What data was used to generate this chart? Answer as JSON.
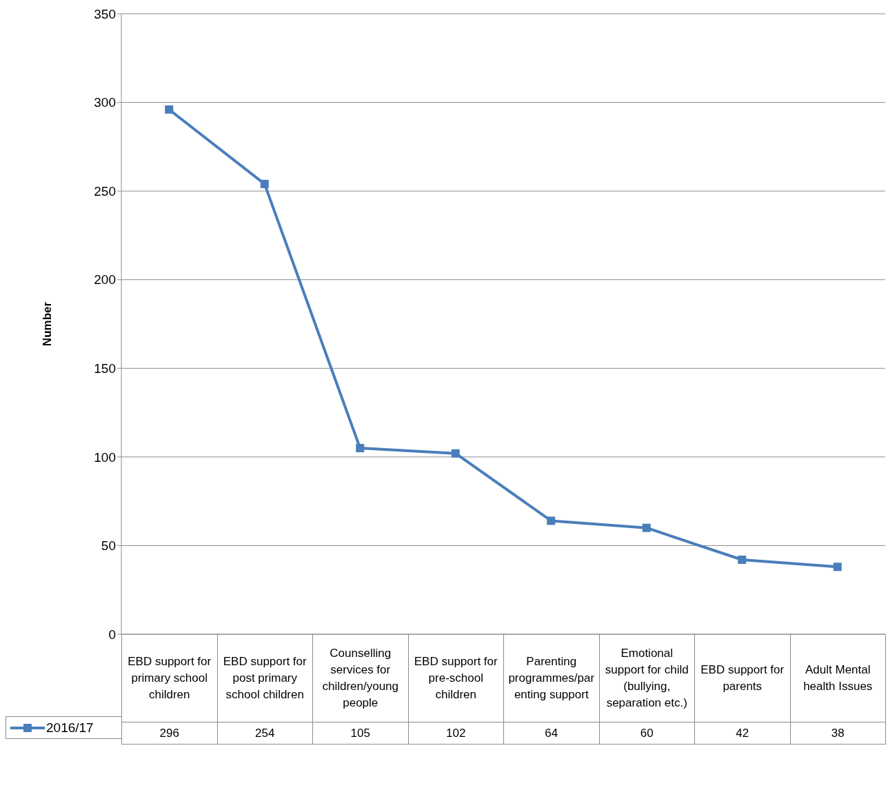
{
  "chart_data": {
    "type": "line",
    "ylabel": "Number",
    "categories": [
      "EBD support for primary school children",
      "EBD support for post primary school children",
      "Counselling services for children/young people",
      "EBD support for pre-school children",
      "Parenting programmes/parenting support",
      "Emotional support for child (bullying, separation etc.)",
      "EBD support for parents",
      "Adult Mental health Issues"
    ],
    "series": [
      {
        "name": "2016/17",
        "color": "#4a7ebb",
        "values": [
          296,
          254,
          105,
          102,
          64,
          60,
          42,
          38
        ]
      }
    ],
    "ylim": [
      0,
      350
    ],
    "yticks": [
      0,
      50,
      100,
      150,
      200,
      250,
      300,
      350
    ],
    "grid": "y",
    "legend": "bottom",
    "marker": "square",
    "line_style": "solid",
    "data_labels": true
  }
}
